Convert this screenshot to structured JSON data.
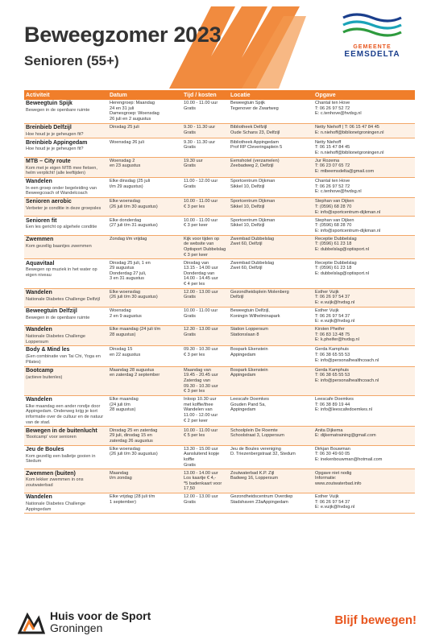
{
  "header": {
    "title": "Beweegzomer 2023",
    "subtitle": "Senioren (55+)"
  },
  "logo": {
    "line1": "GEMEENTE",
    "line2": "EEMSDELTA"
  },
  "table": {
    "headers": [
      "Activiteit",
      "Datum",
      "Tijd / kosten",
      "Locatie",
      "Opgave"
    ],
    "rows": [
      {
        "activity": "Beweegtuin Spijk",
        "desc": "Bewegen in de openbare ruimte",
        "date": "Herengroep: Maandag\n24 en 31 juli\nDamesgroep: Woensdag\n26 juli en 2 augustus",
        "time": "10.00 - 11.00 uur\nGratis",
        "location": "Beweegtuin Spijk\nTegenover de Zwartweg",
        "contact": "Chantal ten Hove\nT: 06 26 97 52 72\nE: c.tenhove@hvdsg.nl"
      },
      {
        "activity": "Breinbieb Delfzijl",
        "desc": "Hoe houd je je geheugen fit?",
        "date": "Dinsdag 25 juli",
        "time": "9.30 - 11.30 uur\nGratis",
        "location": "Bibliotheek Delfzijl\nOude Schans 23, Delfzijl",
        "contact": "Netty Niehoff | T: 06 15 47 84 45\nE: n.niehoff@biblionetgroningen.nl"
      },
      {
        "activity": "Breinbieb Appingedam",
        "desc": "Hoe houd je je geheugen fit?",
        "date": "Woensdag 26 juli",
        "time": "9.30 - 11.30 uur\nGratis",
        "location": "Bibliotheek Appingedam\nProf RP Cleveringaplein 5",
        "contact": "Netty Niehoff\nT: 06 15 47 84 45\nE: n.niehoff@biblionetgroningen.nl"
      },
      {
        "activity": "MTB – City route",
        "desc": "Kom met je eigen MTB mee fietsen, helm verplicht! (alle leeftijden)",
        "date": "Woensdag 2\nen 23 augustus",
        "time": "19.30 uur\nGratis",
        "location": "Eemshotel (verzamelen)\nZeebadweg 2, Delfzijl",
        "contact": "Jur Rozema\nT: 06 23 07 65 72\nE: mtbeemsdelta@gmail.com"
      },
      {
        "activity": "Wandelen",
        "desc": "In een groep onder begeleiding van Beweegcoach of Wandelcoach",
        "date": "Elke dinsdag (25 juli\nt/m 29 augustus)",
        "time": "11.00 - 12.00 uur\nGratis",
        "location": "Sportcentrum Dijkman\nSikkel 10, Delfzijl",
        "contact": "Chantal ten Hove\nT: 06 26 97 52 72\nE: c.tenhove@hvdsg.nl"
      },
      {
        "activity": "Senioren aerobic",
        "desc": "Verbeter je conditie in deze groepsles",
        "date": "Elke woensdag\n(26 juli t/m 30 augustus)",
        "time": "10.00 - 11.00 uur\n€ 3 per les",
        "location": "Sportcentrum Dijkman\nSikkel 10, Delfzijl",
        "contact": "Stephan van Dijken\nT: (0596) 68 28 70\nE: info@sportcentrum-dijkman.nl"
      },
      {
        "activity": "Senioren fit",
        "desc": "Een les gericht op algehele conditie",
        "date": "Elke donderdag\n(27 juli t/m 31 augustus)",
        "time": "10.00 - 11.00 uur\n€ 3 per keer",
        "location": "Sportcentrum Dijkman\nSikkel 10, Delfzijl",
        "contact": "Stephan van Dijken\nT: (0596) 68 28 70\nE: info@sportcentrum-dijkman.nl"
      },
      {
        "activity": "Zwemmen",
        "desc": "Kom gezellig baantjes zwemmen",
        "date": "Zondag t/m vrijdag",
        "time": "Kijk voor tijden op\nde website van\nOptisport Dubbelslag\n€ 3 per keer",
        "location": "Zwembad Dubbelslag\nZwet 60, Delfzijl",
        "contact": "Receptie Dubbelslag\nT: (0596) 61 23 18\nE: dubbelslag@optisport.nl"
      },
      {
        "activity": "Aquavitaal",
        "desc": "Bewegen op muziek in het water op eigen niveau",
        "date": "Dinsdag 25 juli, 1 en\n29 augustus\nDonderdag 27 juli,\n3 en 31 augustus",
        "time": "Dinsdag van\n13.15 - 14.00 uur\nDonderdag van\n14.00 - 14.45 uur\n€ 4 per les",
        "location": "Zwembad Dubbelslag\nZwet 60, Delfzijl",
        "contact": "Receptie Dubbelslag\nT: (0596) 61 23 18\nE: dubbelslag@optisport.nl"
      },
      {
        "activity": "Wandelen",
        "desc": "Nationale Diabetes Challenge Delfzijl",
        "date": "Elke woensdag\n(26 juli t/m 30 augustus)",
        "time": "12.00 - 13.00 uur\nGratis",
        "location": "Gezondheidsplein Molenberg\nDelfzijl",
        "contact": "Esther Vuijk\nT: 06 26 97 54 37\nE: e.vuijk@hvdsg.nl"
      },
      {
        "activity": "Beweegtuin Delfzijl",
        "desc": "Bewegen in de openbare ruimte",
        "date": "Woensdag\n2 en 9 augustus",
        "time": "10.00 - 11.00 uur\nGratis",
        "location": "Beweegtuin Delfzijl,\nKoningin Wilhelminapark",
        "contact": "Esther Vuijk\nT: 06 26 97 54 37\nE: e.vuijk@hvdsg.nl"
      },
      {
        "activity": "Wandelen",
        "desc": "Nationale Diabetes Challenge Loppersum",
        "date": "Elke maandag (24 juli t/m\n28 augustus)",
        "time": "12.30 - 13.00 uur\nGratis",
        "location": "Station Loppersum\nStationslaan 8",
        "contact": "Kirsten Pheifer\nT: 06 83 13 48 75\nE: k.pheifer@hvdsg.nl"
      },
      {
        "activity": "Body & Mind les",
        "desc": "(Een combinatie van Tai Chi, Yoga en Pilates)",
        "date": "Dinsdag 15\nen 22 augustus",
        "time": "09.30 - 10.30 uur\n€ 3 per les",
        "location": "Bospark Ekenstein\nAppingedam",
        "contact": "Gerda Kamphuis\nT: 06 38 65 55 53\nE: info@personalhealthcoach.nl"
      },
      {
        "activity": "Bootcamp",
        "desc": "(actieve buitenles)",
        "date": "Maandag 28 augustus\nen zaterdag 2 september",
        "time": "Maandag van\n19.45 - 20.45 uur\nZaterdag van\n09.30 - 10.30 uur\n€ 3 per les",
        "location": "Bospark Ekenstein\nAppingedam",
        "contact": "Gerda Kamphuis\nT: 06 38 65 55 53\nE: info@personalhealthcoach.nl"
      },
      {
        "activity": "Wandelen",
        "desc": "Elke maandag een ander rondje door Appingedam. Onderweg krijg je kort informatie over de cultuur en de natuur van de stad.",
        "date": "Elke maandag\n(24 juli t/m\n28 augustus)",
        "time": "Inloop 10.30 uur\nmet koffie/thee\nWandelen van\n11.00 - 12.00 uur\n€ 2 per keer",
        "location": "Leescafe Doemkes\nGouden Pand 5a,\nAppingedam",
        "contact": "Leescafe Doemkes\nT: 06 38 89 19 44\nE: info@leescafedoemkes.nl"
      },
      {
        "activity": "Bewegen in de buitenlucht",
        "desc": "'Bootcamp' voor senioren",
        "date": "Dinsdag 25 en zaterdag\n29 juli, dinsdag 15 en\nzaterdag 26 augustus",
        "time": "10.00 - 11.00 uur\n€ 5 per les",
        "location": "Schoolplein De Roemte\nSchoolstraat 3, Loppersum",
        "contact": "Anita Dijkema\nE: dijkematraining@gmail.com"
      },
      {
        "activity": "Jeu de Boules",
        "desc": "Kom gezellig een balletje gooien in Stedum",
        "date": "Elke woensdag\n(26 juli t/m 30 augustus)",
        "time": "13.30 - 15.00 uur\nAansluitend kopje koffie\nGratis",
        "location": "Jeu de Boules vereniging\nD. Triezenbergstraat 32, Stedum",
        "contact": "Dirkjan Bouwman\nT: 06 30 49 60 05\nE: inekenbouwman@hotmail.com"
      },
      {
        "activity": "Zwemmen (buiten)",
        "desc": "Kom lekker zwemmen in ons zoutwaterbad",
        "date": "Maandag\nt/m zondag",
        "time": "13.00 - 14.00 uur\nLos kaartje € 4,-\n*5 badenkaart voor 17,50",
        "location": "Zoutwaterbad K.P. Zijl\nBadweg 16, Loppersum",
        "contact": "Opgave niet nodig\nInformatie:\nwww.zoutwaterbad.info"
      },
      {
        "activity": "Wandelen",
        "desc": "Nationale Diabetes Challenge Appingedam",
        "date": "Elke vrijdag (28 juli t/m\n1 september)",
        "time": "12.00 - 13.00 uur\nGratis",
        "location": "Gezondheidscentrum Overdiep\nStadshaven 23aAppingedam",
        "contact": "Esther Vuijk\nT: 06 26 97 54 37\nE: e.vuijk@hvdsg.nl"
      }
    ]
  },
  "footer": {
    "org_line1": "Huis voor de Sport",
    "org_line2": "Groningen",
    "slogan": "Blijf bewegen!"
  },
  "colors": {
    "accent": "#f07e2a",
    "accent_dark": "#e8561e",
    "logo_blue": "#1a3e8c",
    "row_alt": "#fdf1e6"
  },
  "icons": {
    "header_logo": "gemeente-eemsdelta-wave-logo",
    "footer_logo": "huis-voor-de-sport-runner-logo"
  }
}
